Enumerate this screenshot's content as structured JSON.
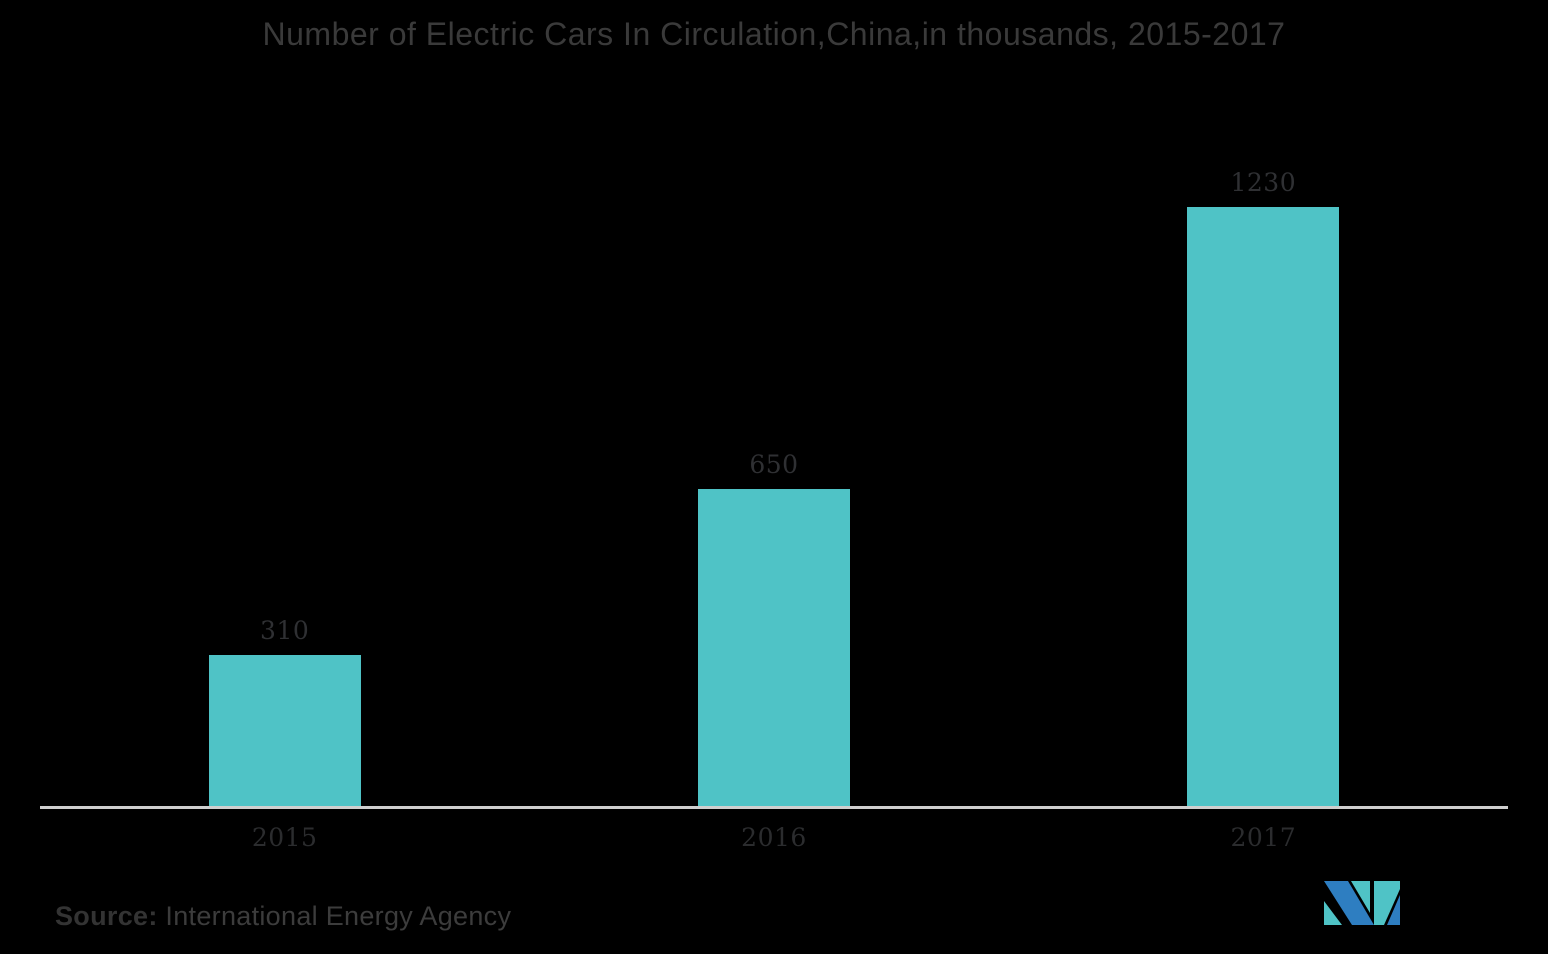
{
  "page": {
    "background": "#000000"
  },
  "title": {
    "text": "Number of Electric Cars In Circulation,China,in thousands, 2015-2017",
    "color": "#3a3a3a"
  },
  "chart_data": {
    "type": "bar",
    "categories": [
      "2015",
      "2016",
      "2017"
    ],
    "values": [
      310,
      650,
      1230
    ],
    "value_labels": [
      "310",
      "650",
      "1230"
    ],
    "title": "Number of Electric Cars In Circulation,China,in thousands, 2015-2017",
    "xlabel": "",
    "ylabel": "",
    "ylim": [
      0,
      1230
    ],
    "grid": false,
    "legend": false,
    "bar_color": "#4FC3C6",
    "axis_line_color": "#CFCFCF",
    "label_color": "#2f3033"
  },
  "source": {
    "label": "Source:",
    "text": " International Energy Agency"
  },
  "logo": {
    "name": "mordor-intelligence-logo",
    "blue": "#2E7EC1",
    "teal": "#4FC3C6"
  }
}
